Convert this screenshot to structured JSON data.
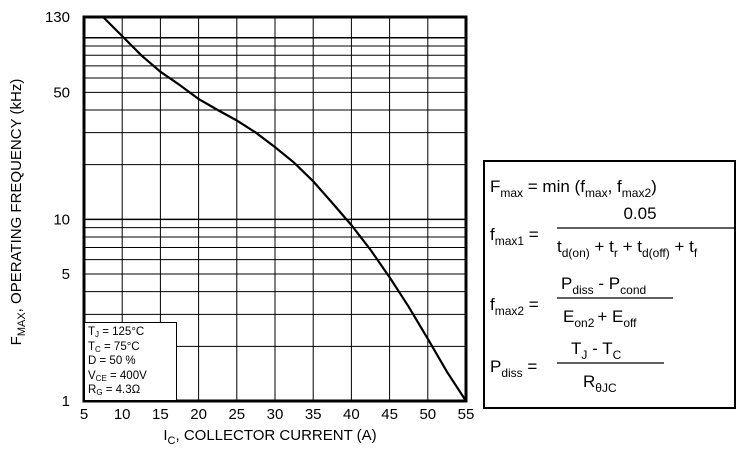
{
  "chart_data": {
    "type": "line",
    "xlabel": "I",
    "xlabel_sub": "C",
    "xlabel_rest": ", COLLECTOR CURRENT (A)",
    "ylabel": "F",
    "ylabel_sub": "MAX",
    "ylabel_rest": ", OPERATING FREQUENCY (kHz)",
    "xlim": [
      5,
      55
    ],
    "ylim": [
      1,
      130
    ],
    "y_scale": "log",
    "grid": true,
    "x_ticks": [
      5,
      10,
      15,
      20,
      25,
      30,
      35,
      40,
      45,
      50,
      55
    ],
    "x_tick_labels": [
      "5",
      "10",
      "15",
      "20",
      "25",
      "30",
      "35",
      "40",
      "45",
      "50",
      "55"
    ],
    "y_ticks": [
      1,
      5,
      10,
      50,
      130
    ],
    "y_tick_labels": [
      "1",
      "5",
      "10",
      "50",
      "130"
    ],
    "series": [
      {
        "x": [
          7.5,
          10,
          12.5,
          15,
          17.5,
          20,
          22.5,
          25,
          27.5,
          30,
          32.5,
          35,
          37.5,
          40,
          42.5,
          45,
          47.5,
          50,
          52.5,
          55
        ],
        "y": [
          130,
          102,
          80,
          65,
          55,
          46,
          40,
          35,
          30,
          25,
          20.5,
          16.2,
          12.3,
          9.3,
          6.8,
          4.8,
          3.3,
          2.2,
          1.45,
          0.95
        ]
      }
    ],
    "conditions": [
      {
        "main": "T",
        "sub": "J",
        "rest": " = 125°C"
      },
      {
        "main": "T",
        "sub": "C",
        "rest": " = 75°C"
      },
      {
        "main": "D",
        "sub": "",
        "rest": " = 50 %"
      },
      {
        "main": "V",
        "sub": "CE",
        "rest": " = 400V"
      },
      {
        "main": "R",
        "sub": "G",
        "rest": " = 4.3Ω"
      }
    ]
  },
  "formulas": {
    "l1": {
      "a": "F",
      "a_sub": "max",
      "b": " = min (f",
      "b_sub": "max",
      "c": ", f",
      "c_sub": "max2",
      "d": ")"
    },
    "l2": {
      "lhs": "f",
      "lhs_sub": "max1",
      "eq": " =",
      "num": "0.05",
      "d1": "t",
      "d1_sub": "d(on)",
      "d2": " + t",
      "d2_sub": "r",
      "d3": " + t",
      "d3_sub": "d(off)",
      "d4": " + t",
      "d4_sub": "f"
    },
    "l3": {
      "lhs": "f",
      "lhs_sub": "max2",
      "eq": " =",
      "n1": "P",
      "n1_sub": "diss",
      "n2": " - P",
      "n2_sub": "cond",
      "d1": "E",
      "d1_sub": "on2",
      "d2": "+ E",
      "d2_sub": "off"
    },
    "l4": {
      "lhs": "P",
      "lhs_sub": "diss",
      "eq": " =",
      "n1": "T",
      "n1_sub": "J",
      "n2": " - T",
      "n2_sub": "C",
      "d1": "R",
      "d1_sub": "θJC"
    }
  }
}
